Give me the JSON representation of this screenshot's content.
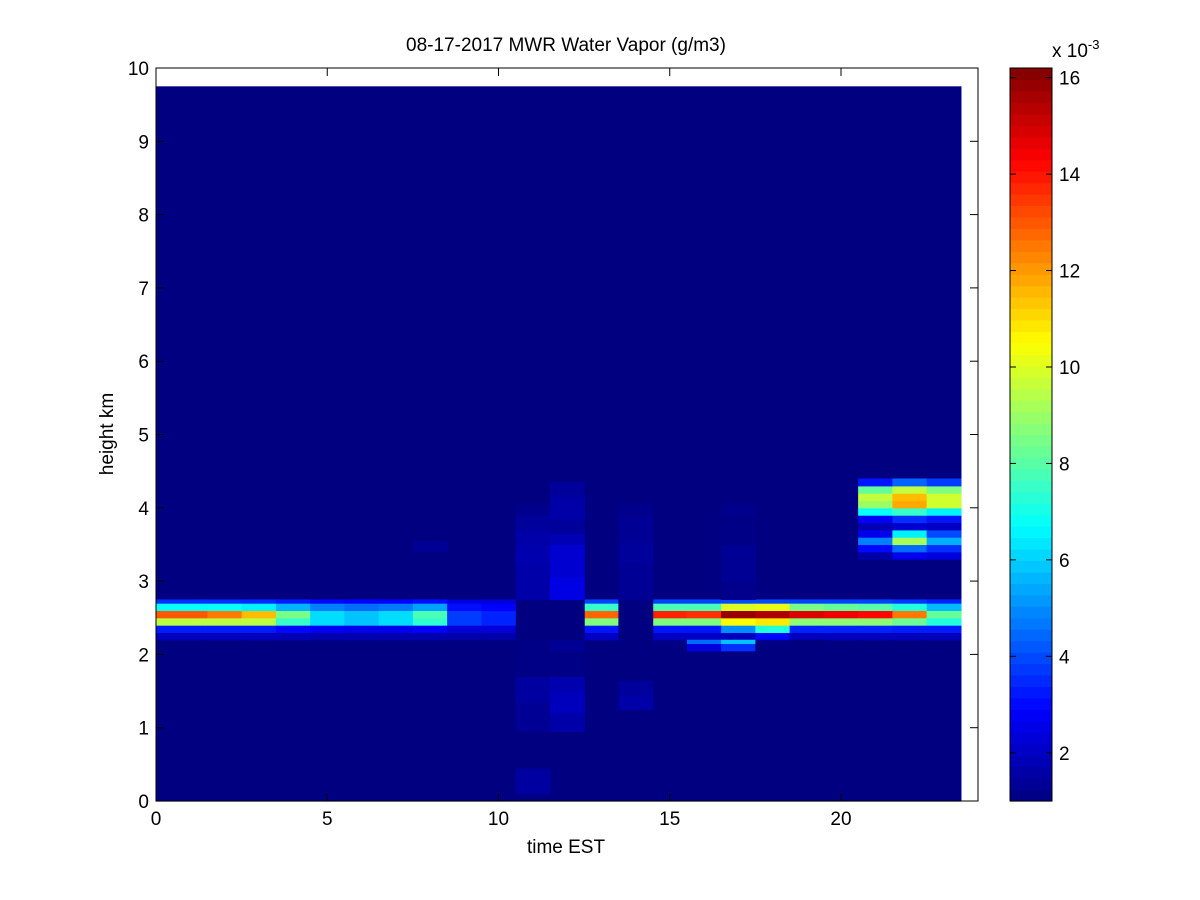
{
  "chart_data": {
    "type": "heatmap",
    "title": "08-17-2017 MWR Water Vapor (g/m3)",
    "xlabel": "time EST",
    "ylabel": "height km",
    "xlim": [
      0,
      24
    ],
    "ylim": [
      0,
      10
    ],
    "x_ticks": [
      0,
      5,
      10,
      15,
      20
    ],
    "y_ticks": [
      0,
      1,
      2,
      3,
      4,
      5,
      6,
      7,
      8,
      9,
      10
    ],
    "colorbar": {
      "exponent_label": "x 10",
      "exponent_power": "-3",
      "min": 0.001,
      "max": 0.0162,
      "ticks": [
        2,
        4,
        6,
        8,
        10,
        12,
        14,
        16
      ],
      "colormap": "jet",
      "levels": 64
    },
    "grid": false,
    "data_extent": {
      "time_start": 0,
      "time_end": 23.5,
      "height_top": 9.75
    },
    "time_edges": [
      0,
      1.5,
      2.5,
      3.5,
      4.5,
      5.5,
      6.5,
      7.5,
      8.5,
      9.5,
      10.5,
      11.5,
      12.5,
      13.5,
      14.5,
      15.5,
      16.5,
      17.5,
      18.5,
      19.5,
      20.5,
      21.5,
      22.5,
      23.5
    ],
    "background_value": 0.001,
    "features": [
      {
        "name": "band",
        "height_edges": [
          2.2,
          2.3,
          2.4,
          2.5,
          2.6,
          2.7,
          2.75
        ],
        "values_x1e3": [
          [
            1.9,
            3.3,
            9.5,
            13.0,
            6.8,
            3.6
          ],
          [
            1.9,
            3.3,
            9.5,
            12.5,
            6.8,
            3.6
          ],
          [
            1.9,
            3.3,
            9.5,
            11.5,
            6.5,
            3.5
          ],
          [
            1.8,
            3.0,
            7.5,
            8.5,
            5.6,
            3.3
          ],
          [
            1.7,
            2.7,
            6.2,
            6.2,
            4.8,
            3.0
          ],
          [
            1.7,
            2.6,
            5.8,
            5.8,
            4.5,
            2.9
          ],
          [
            1.7,
            2.6,
            6.2,
            6.2,
            4.7,
            2.9
          ],
          [
            1.7,
            2.8,
            7.4,
            7.8,
            5.3,
            3.1
          ],
          [
            1.6,
            2.3,
            3.8,
            3.8,
            3.1,
            2.4
          ],
          [
            1.6,
            2.3,
            3.4,
            3.4,
            2.9,
            2.3
          ],
          [
            1.7,
            2.6,
            5.6,
            5.6,
            4.5,
            2.9
          ],
          [
            1.8,
            2.9,
            6.8,
            6.8,
            5.0,
            3.4
          ],
          [
            2.0,
            3.2,
            8.6,
            12.8,
            7.5,
            3.9
          ],
          [
            2.0,
            3.2,
            8.2,
            11.8,
            7.0,
            3.8
          ],
          [
            2.0,
            3.2,
            8.6,
            13.8,
            7.8,
            3.9
          ],
          [
            2.0,
            3.2,
            8.6,
            13.6,
            7.8,
            3.9
          ],
          [
            1.9,
            5.0,
            10.5,
            15.8,
            10.0,
            4.0
          ],
          [
            3.0,
            7.2,
            10.8,
            15.5,
            10.2,
            4.0
          ],
          [
            1.9,
            3.4,
            8.8,
            14.8,
            8.5,
            3.9
          ],
          [
            1.9,
            3.4,
            8.8,
            14.5,
            8.2,
            3.9
          ],
          [
            1.9,
            3.4,
            8.8,
            14.2,
            8.0,
            3.9
          ],
          [
            1.9,
            3.3,
            8.3,
            12.5,
            7.2,
            3.7
          ],
          [
            1.9,
            3.3,
            7.2,
            8.2,
            5.7,
            3.4
          ]
        ]
      },
      {
        "name": "dip",
        "height_edges": [
          2.05,
          2.15,
          2.2
        ],
        "values_x1e3": [
          [
            1.0,
            2.4,
            3.6,
            1.0,
            1.0
          ],
          [
            1.2,
            4.5,
            5.8,
            1.2,
            1.0
          ]
        ],
        "time_edges": [
          13.5,
          15.5,
          16.5,
          17.5,
          18.5,
          19.5
        ]
      },
      {
        "name": "column_11",
        "time_edges": [
          10.5,
          11.5
        ],
        "height_edges": [
          0.1,
          0.45,
          0.95,
          1.35,
          1.7,
          2.2,
          2.75,
          3.25,
          3.5,
          3.7,
          3.9,
          4.05
        ],
        "values_x1e3": [
          1.5,
          1.0,
          1.3,
          1.5,
          1.1,
          1.0,
          1.6,
          1.7,
          1.6,
          1.4,
          1.2
        ]
      },
      {
        "name": "column_12",
        "time_edges": [
          11.5,
          12.5
        ],
        "height_edges": [
          0.95,
          1.2,
          1.5,
          1.7,
          2.05,
          2.2,
          2.75,
          3.05,
          3.5,
          3.65,
          3.85,
          4.15,
          4.35
        ],
        "values_x1e3": [
          1.6,
          1.9,
          1.7,
          1.1,
          1.3,
          1.0,
          2.5,
          2.2,
          1.8,
          1.4,
          1.6,
          1.4
        ]
      },
      {
        "name": "column_14",
        "time_edges": [
          13.5,
          14.5
        ],
        "height_edges": [
          1.25,
          1.45,
          1.65,
          2.75,
          3.25,
          3.55,
          3.9,
          4.05
        ],
        "values_x1e3": [
          1.6,
          1.4,
          1.0,
          1.3,
          1.4,
          1.3,
          1.2
        ]
      },
      {
        "name": "column_17",
        "time_edges": [
          16.5,
          17.5
        ],
        "height_edges": [
          2.75,
          3.0,
          3.35,
          3.5,
          3.9,
          4.05
        ],
        "values_x1e3": [
          1.2,
          1.3,
          1.3,
          1.1,
          1.2
        ]
      },
      {
        "name": "small_8",
        "time_edges": [
          7.5,
          8.5
        ],
        "height_edges": [
          3.4,
          3.55
        ],
        "values_x1e3": [
          1.3
        ]
      },
      {
        "name": "upper_layer",
        "time_edges": [
          20.5,
          21.5,
          22.5,
          23.5
        ],
        "height_edges": [
          3.3,
          3.4,
          3.5,
          3.6,
          3.7,
          3.8,
          3.9,
          4.0,
          4.1,
          4.2,
          4.3,
          4.4
        ],
        "values_x1e3": [
          [
            1.6,
            2.6,
            2.4
          ],
          [
            3.0,
            4.5,
            3.6
          ],
          [
            4.8,
            9.2,
            5.5
          ],
          [
            2.6,
            6.5,
            4.0
          ],
          [
            1.8,
            2.2,
            2.0
          ],
          [
            2.8,
            3.6,
            3.2
          ],
          [
            6.8,
            7.5,
            6.5
          ],
          [
            9.0,
            11.8,
            9.8
          ],
          [
            9.6,
            11.5,
            9.8
          ],
          [
            8.2,
            9.6,
            8.6
          ],
          [
            3.2,
            4.4,
            3.8
          ]
        ]
      }
    ]
  }
}
